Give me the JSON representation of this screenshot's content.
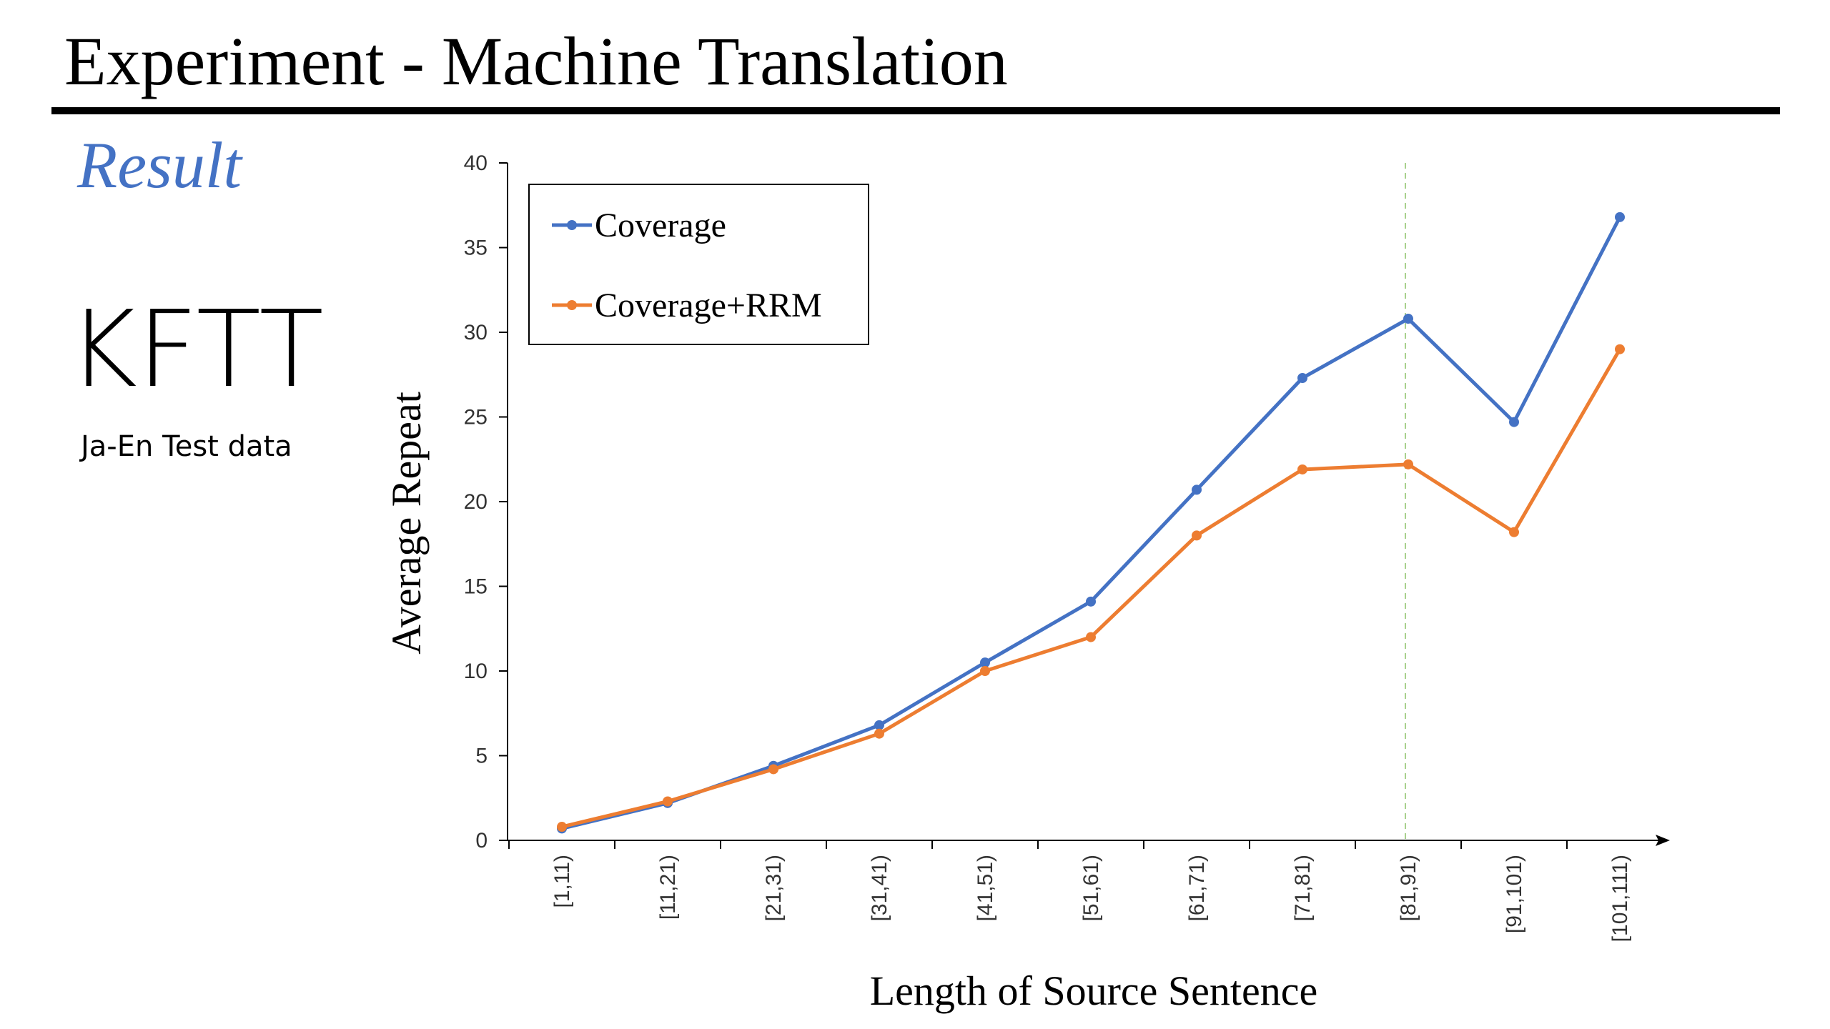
{
  "slide": {
    "title": "Experiment - Machine Translation",
    "section": "Result",
    "dataset_name": "KFTT",
    "dataset_caption": "Ja-En Test data"
  },
  "colors": {
    "accent": "#4472c4",
    "series_coverage": "#4472c4",
    "series_rrm": "#ed7d31",
    "marker_line": "#a9d18e"
  },
  "chart_data": {
    "type": "line",
    "xlabel": "Length of Source Sentence",
    "ylabel": "Average Repeat",
    "categories": [
      "[1,11)",
      "[11,21)",
      "[21,31)",
      "[31,41)",
      "[41,51)",
      "[51,61)",
      "[61,71)",
      "[71,81)",
      "[81,91)",
      "[91,101)",
      "[101,111)"
    ],
    "ylim": [
      0,
      40
    ],
    "yticks": [
      0,
      5,
      10,
      15,
      20,
      25,
      30,
      35,
      40
    ],
    "grid": false,
    "legend": "top-left",
    "series": [
      {
        "name": "Coverage",
        "values": [
          0.7,
          2.2,
          4.4,
          6.8,
          10.5,
          14.1,
          20.7,
          27.3,
          30.8,
          24.7,
          36.8
        ]
      },
      {
        "name": "Coverage+RRM",
        "values": [
          0.8,
          2.3,
          4.2,
          6.3,
          10.0,
          12.0,
          18.0,
          21.9,
          22.2,
          18.2,
          29.0
        ]
      }
    ],
    "vertical_marker_category": "[81,91)"
  }
}
